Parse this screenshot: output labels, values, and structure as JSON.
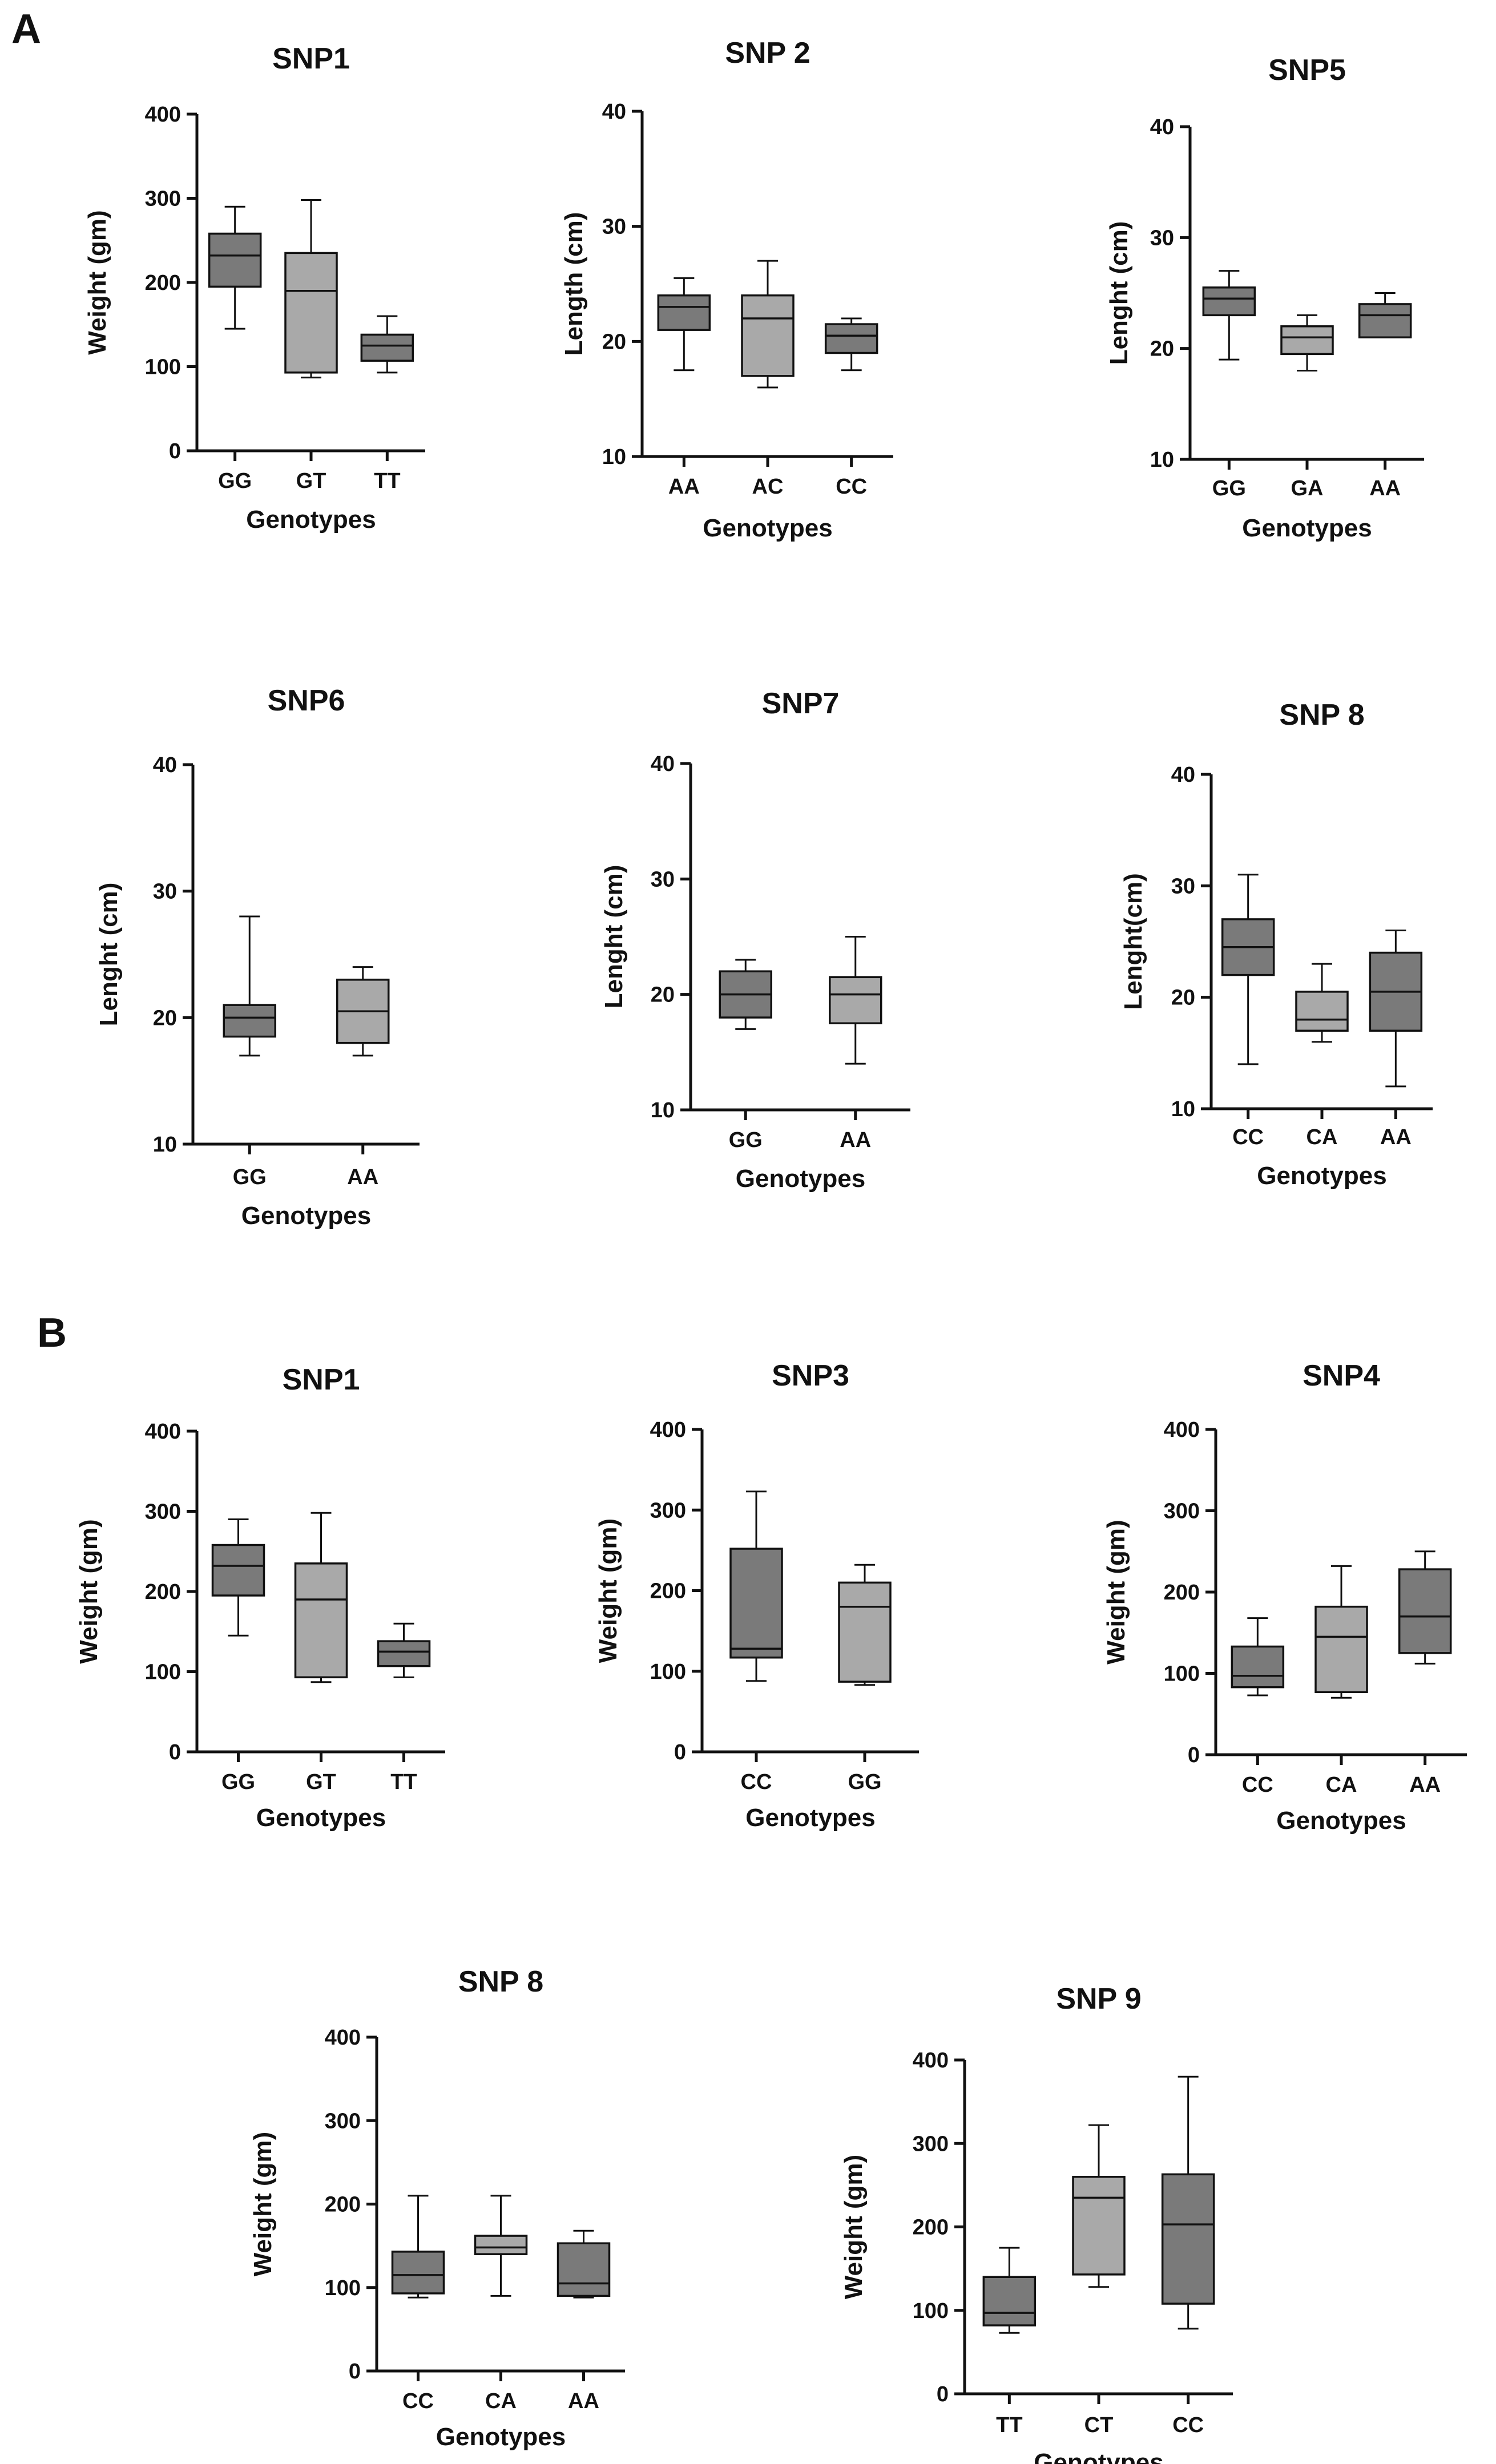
{
  "panels": [
    {
      "label": "A"
    },
    {
      "label": "B"
    }
  ],
  "colors": {
    "dark": "#7a7a7a",
    "light": "#a9a9a9"
  },
  "chart_data": [
    {
      "type": "box",
      "panel": "A",
      "title": "SNP1",
      "xlabel": "Genotypes",
      "ylabel": "Weight (gm)",
      "ylim": [
        0,
        400
      ],
      "yticks": [
        0,
        100,
        200,
        300,
        400
      ],
      "categories": [
        "GG",
        "GT",
        "TT"
      ],
      "boxes": [
        {
          "min": 145,
          "q1": 195,
          "median": 232,
          "q3": 258,
          "max": 290,
          "shade": "dark"
        },
        {
          "min": 87,
          "q1": 93,
          "median": 190,
          "q3": 235,
          "max": 298,
          "shade": "light"
        },
        {
          "min": 93,
          "q1": 107,
          "median": 125,
          "q3": 138,
          "max": 160,
          "shade": "dark"
        }
      ]
    },
    {
      "type": "box",
      "panel": "A",
      "title": "SNP 2",
      "xlabel": "Genotypes",
      "ylabel": "Length (cm)",
      "ylim": [
        10,
        40
      ],
      "yticks": [
        10,
        20,
        30,
        40
      ],
      "categories": [
        "AA",
        "AC",
        "CC"
      ],
      "boxes": [
        {
          "min": 17.5,
          "q1": 21,
          "median": 23,
          "q3": 24,
          "max": 25.5,
          "shade": "dark"
        },
        {
          "min": 16,
          "q1": 17,
          "median": 22,
          "q3": 24,
          "max": 27,
          "shade": "light"
        },
        {
          "min": 17.5,
          "q1": 19,
          "median": 20.5,
          "q3": 21.5,
          "max": 22,
          "shade": "dark"
        }
      ]
    },
    {
      "type": "box",
      "panel": "A",
      "title": "SNP5",
      "xlabel": "Genotypes",
      "ylabel": "Lenght (cm)",
      "ylim": [
        10,
        40
      ],
      "yticks": [
        10,
        20,
        30,
        40
      ],
      "categories": [
        "GG",
        "GA",
        "AA"
      ],
      "boxes": [
        {
          "min": 19,
          "q1": 23,
          "median": 24.5,
          "q3": 25.5,
          "max": 27,
          "shade": "dark"
        },
        {
          "min": 18,
          "q1": 19.5,
          "median": 21,
          "q3": 22,
          "max": 23,
          "shade": "light"
        },
        {
          "min": 21,
          "q1": 21,
          "median": 23,
          "q3": 24,
          "max": 25,
          "shade": "dark"
        }
      ]
    },
    {
      "type": "box",
      "panel": "A",
      "title": "SNP6",
      "xlabel": "Genotypes",
      "ylabel": "Lenght (cm)",
      "ylim": [
        10,
        40
      ],
      "yticks": [
        10,
        20,
        30,
        40
      ],
      "categories": [
        "GG",
        "AA"
      ],
      "boxes": [
        {
          "min": 17,
          "q1": 18.5,
          "median": 20,
          "q3": 21,
          "max": 28,
          "shade": "dark"
        },
        {
          "min": 17,
          "q1": 18,
          "median": 20.5,
          "q3": 23,
          "max": 24,
          "shade": "light"
        }
      ]
    },
    {
      "type": "box",
      "panel": "A",
      "title": "SNP7",
      "xlabel": "Genotypes",
      "ylabel": "Lenght (cm)",
      "ylim": [
        10,
        40
      ],
      "yticks": [
        10,
        20,
        30,
        40
      ],
      "categories": [
        "GG",
        "AA"
      ],
      "boxes": [
        {
          "min": 17,
          "q1": 18,
          "median": 20,
          "q3": 22,
          "max": 23,
          "shade": "dark"
        },
        {
          "min": 14,
          "q1": 17.5,
          "median": 20,
          "q3": 21.5,
          "max": 25,
          "shade": "light"
        }
      ]
    },
    {
      "type": "box",
      "panel": "A",
      "title": "SNP 8",
      "xlabel": "Genotypes",
      "ylabel": "Lenght(cm)",
      "ylim": [
        10,
        40
      ],
      "yticks": [
        10,
        20,
        30,
        40
      ],
      "categories": [
        "CC",
        "CA",
        "AA"
      ],
      "boxes": [
        {
          "min": 14,
          "q1": 22,
          "median": 24.5,
          "q3": 27,
          "max": 31,
          "shade": "dark"
        },
        {
          "min": 16,
          "q1": 17,
          "median": 18,
          "q3": 20.5,
          "max": 23,
          "shade": "light"
        },
        {
          "min": 12,
          "q1": 17,
          "median": 20.5,
          "q3": 24,
          "max": 26,
          "shade": "dark"
        }
      ]
    },
    {
      "type": "box",
      "panel": "B",
      "title": "SNP1",
      "xlabel": "Genotypes",
      "ylabel": "Weight (gm)",
      "ylim": [
        0,
        400
      ],
      "yticks": [
        0,
        100,
        200,
        300,
        400
      ],
      "categories": [
        "GG",
        "GT",
        "TT"
      ],
      "boxes": [
        {
          "min": 145,
          "q1": 195,
          "median": 232,
          "q3": 258,
          "max": 290,
          "shade": "dark"
        },
        {
          "min": 87,
          "q1": 93,
          "median": 190,
          "q3": 235,
          "max": 298,
          "shade": "light"
        },
        {
          "min": 93,
          "q1": 107,
          "median": 125,
          "q3": 138,
          "max": 160,
          "shade": "dark"
        }
      ]
    },
    {
      "type": "box",
      "panel": "B",
      "title": "SNP3",
      "xlabel": "Genotypes",
      "ylabel": "Weight (gm)",
      "ylim": [
        0,
        400
      ],
      "yticks": [
        0,
        100,
        200,
        300,
        400
      ],
      "categories": [
        "CC",
        "GG"
      ],
      "boxes": [
        {
          "min": 88,
          "q1": 117,
          "median": 128,
          "q3": 252,
          "max": 323,
          "shade": "dark"
        },
        {
          "min": 83,
          "q1": 87,
          "median": 180,
          "q3": 210,
          "max": 232,
          "shade": "light"
        }
      ]
    },
    {
      "type": "box",
      "panel": "B",
      "title": "SNP4",
      "xlabel": "Genotypes",
      "ylabel": "Weight (gm)",
      "ylim": [
        0,
        400
      ],
      "yticks": [
        0,
        100,
        200,
        300,
        400
      ],
      "categories": [
        "CC",
        "CA",
        "AA"
      ],
      "boxes": [
        {
          "min": 73,
          "q1": 83,
          "median": 97,
          "q3": 133,
          "max": 168,
          "shade": "dark"
        },
        {
          "min": 70,
          "q1": 77,
          "median": 145,
          "q3": 182,
          "max": 232,
          "shade": "light"
        },
        {
          "min": 112,
          "q1": 125,
          "median": 170,
          "q3": 228,
          "max": 250,
          "shade": "dark"
        }
      ]
    },
    {
      "type": "box",
      "panel": "B",
      "title": "SNP 8",
      "xlabel": "Genotypes",
      "ylabel": "Weight (gm)",
      "ylim": [
        0,
        400
      ],
      "yticks": [
        0,
        100,
        200,
        300,
        400
      ],
      "categories": [
        "CC",
        "CA",
        "AA"
      ],
      "boxes": [
        {
          "min": 88,
          "q1": 93,
          "median": 115,
          "q3": 143,
          "max": 210,
          "shade": "dark"
        },
        {
          "min": 90,
          "q1": 140,
          "median": 148,
          "q3": 162,
          "max": 210,
          "shade": "light"
        },
        {
          "min": 88,
          "q1": 90,
          "median": 105,
          "q3": 153,
          "max": 168,
          "shade": "dark"
        }
      ]
    },
    {
      "type": "box",
      "panel": "B",
      "title": "SNP 9",
      "xlabel": "Genotypes",
      "ylabel": "Weight (gm)",
      "ylim": [
        0,
        400
      ],
      "yticks": [
        0,
        100,
        200,
        300,
        400
      ],
      "categories": [
        "TT",
        "CT",
        "CC"
      ],
      "boxes": [
        {
          "min": 73,
          "q1": 82,
          "median": 97,
          "q3": 140,
          "max": 175,
          "shade": "dark"
        },
        {
          "min": 128,
          "q1": 143,
          "median": 235,
          "q3": 260,
          "max": 322,
          "shade": "light"
        },
        {
          "min": 78,
          "q1": 108,
          "median": 203,
          "q3": 263,
          "max": 380,
          "shade": "dark"
        }
      ]
    }
  ]
}
